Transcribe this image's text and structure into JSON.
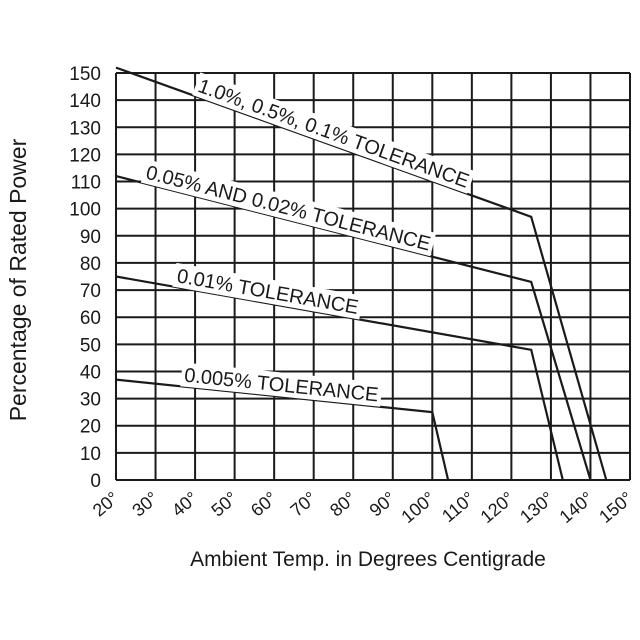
{
  "chart_data": {
    "type": "line",
    "xlabel": "Ambient Temp. in Degrees Centigrade",
    "ylabel": "Percentage of Rated Power",
    "xlim": [
      20,
      150
    ],
    "ylim": [
      0,
      150
    ],
    "x_ticks": [
      "20°",
      "30°",
      "40°",
      "50°",
      "60°",
      "70°",
      "80°",
      "90°",
      "100°",
      "110°",
      "120°",
      "130°",
      "140°",
      "150°"
    ],
    "y_ticks": [
      "0",
      "10",
      "20",
      "30",
      "40",
      "50",
      "60",
      "70",
      "80",
      "90",
      "100",
      "110",
      "120",
      "130",
      "140",
      "150"
    ],
    "grid": true,
    "line_color": "#1a1a1a",
    "series": [
      {
        "name": "1.0%, 0.5%, 0.1% TOLERANCE",
        "points": [
          [
            20,
            152
          ],
          [
            125,
            97
          ],
          [
            144,
            0
          ]
        ]
      },
      {
        "name": "0.05% AND 0.02% TOLERANCE",
        "points": [
          [
            20,
            112
          ],
          [
            125,
            73
          ],
          [
            140,
            0
          ]
        ]
      },
      {
        "name": "0.01% TOLERANCE",
        "points": [
          [
            20,
            75
          ],
          [
            125,
            48
          ],
          [
            133,
            0
          ]
        ]
      },
      {
        "name": "0.005% TOLERANCE",
        "points": [
          [
            20,
            37
          ],
          [
            100,
            25
          ],
          [
            104,
            0
          ]
        ]
      }
    ]
  }
}
